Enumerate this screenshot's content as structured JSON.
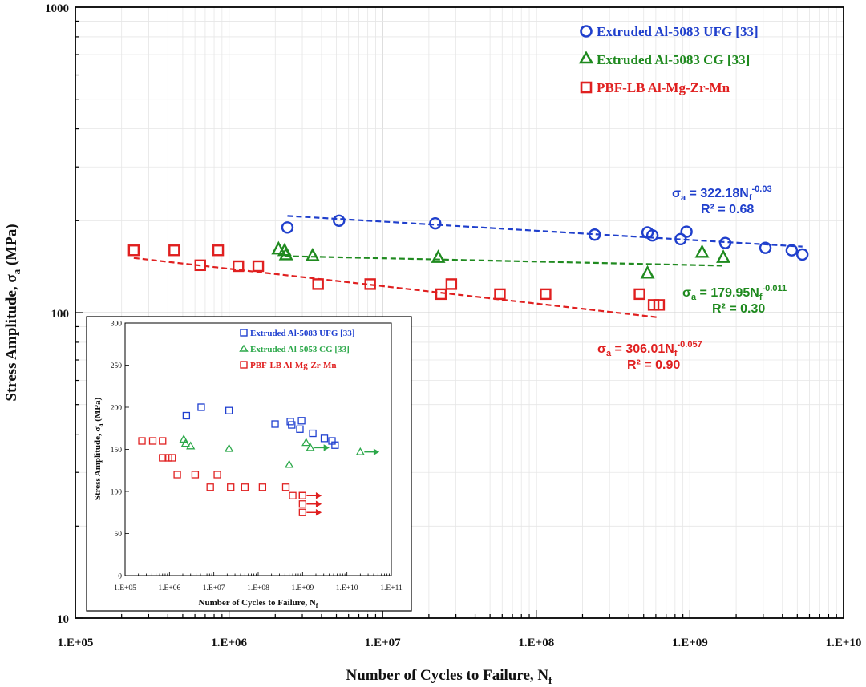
{
  "chart_data": [
    {
      "type": "scatter",
      "xlabel": "Number of Cycles to Failure, N",
      "xlabel_sub": "f",
      "ylabel": "Stress Amplitude, σ",
      "ylabel_sub": "a",
      "ylabel_unit": " (MPa)",
      "x_scale": "log",
      "y_scale": "log",
      "xlim": [
        100000,
        10000000000
      ],
      "ylim": [
        10,
        1000
      ],
      "grid": true,
      "legend_position": "top-right",
      "x_tick_labels": [
        "1.E+05",
        "1.E+06",
        "1.E+07",
        "1.E+08",
        "1.E+09",
        "1.E+10"
      ],
      "y_tick_labels": [
        "10",
        "100",
        "1000"
      ],
      "series": [
        {
          "name": "Extruded Al-5083 UFG [33]",
          "marker": "circle",
          "color": "#1f3fcc",
          "x": [
            2400000,
            5200000,
            22000000,
            240000000,
            530000000,
            570000000,
            870000000,
            950000000,
            1700000000,
            3100000000,
            4600000000,
            5400000000
          ],
          "y": [
            190,
            200,
            196,
            180,
            183,
            179,
            174,
            184,
            169,
            163,
            160,
            155
          ],
          "fit": {
            "coef": 322.18,
            "exp": -0.03,
            "x_range": [
              2400000,
              5400000000
            ],
            "eq_prefix": "σ",
            "eq_prefix_sub": "a",
            "eq_mid": " = 322.18N",
            "eq_mid_sub": "f",
            "eq_exp": "-0.03",
            "r2": "R² = 0.68"
          }
        },
        {
          "name": "Extruded Al-5083 CG [33]",
          "marker": "triangle",
          "color": "#1f8a1f",
          "x": [
            2100000,
            2300000,
            2350000,
            3500000,
            23000000,
            530000000,
            1200000000,
            1650000000
          ],
          "y": [
            162,
            160,
            155,
            154,
            152,
            135,
            158,
            152
          ],
          "fit": {
            "coef": 179.95,
            "exp": -0.011,
            "x_range": [
              2300000,
              1650000000
            ],
            "eq_prefix": "σ",
            "eq_prefix_sub": "a",
            "eq_mid": " = 179.95N",
            "eq_mid_sub": "f",
            "eq_exp": "-0.011",
            "r2": "R² = 0.30"
          }
        },
        {
          "name": "PBF-LB Al-Mg-Zr-Mn",
          "marker": "square",
          "color": "#e02020",
          "x": [
            240000,
            440000,
            650000,
            850000,
            1150000,
            1550000,
            3800000,
            8300000,
            24000000,
            28000000,
            58000000,
            115000000,
            470000000,
            580000000,
            630000000
          ],
          "y": [
            160,
            160,
            143,
            160,
            142,
            142,
            124,
            124,
            115,
            124,
            115,
            115,
            115,
            106,
            106
          ],
          "fit": {
            "coef": 306.01,
            "exp": -0.057,
            "x_range": [
              240000,
              630000000
            ],
            "eq_prefix": "σ",
            "eq_prefix_sub": "a",
            "eq_mid": " = 306.01N",
            "eq_mid_sub": "f",
            "eq_exp": "-0.057",
            "r2": "R² = 0.90"
          }
        }
      ]
    },
    {
      "type": "scatter",
      "xlabel": "Number of Cycles to Failure, N",
      "xlabel_sub": "f",
      "ylabel": "Stress Amplitude, σ",
      "ylabel_sub": "a",
      "ylabel_unit": " (MPa)",
      "x_scale": "log",
      "y_scale": "linear",
      "xlim": [
        100000,
        100000000000
      ],
      "ylim": [
        0,
        300
      ],
      "grid": false,
      "legend_position": "top-left",
      "x_tick_labels": [
        "1.E+05",
        "1.E+06",
        "1.E+07",
        "1.E+08",
        "1.E+09",
        "1.E+10",
        "1.E+11"
      ],
      "y_tick_labels": [
        "0",
        "50",
        "100",
        "150",
        "200",
        "250",
        "300"
      ],
      "series": [
        {
          "name": "Extruded Al-5083 UFG [33]",
          "marker": "square",
          "color": "#2040d0",
          "x": [
            2400000,
            5200000,
            22000000,
            240000000,
            530000000,
            570000000,
            870000000,
            950000000,
            1700000000,
            3100000000,
            4600000000,
            5400000000
          ],
          "y": [
            190,
            200,
            196,
            180,
            183,
            179,
            174,
            184,
            169,
            163,
            160,
            155
          ],
          "runouts": []
        },
        {
          "name": "Extruded Al-5053 CG [33]",
          "marker": "triangle",
          "color": "#2ca84a",
          "x": [
            2100000,
            2300000,
            3000000,
            22000000,
            500000000,
            1200000000,
            1500000000,
            20000000000
          ],
          "y": [
            162,
            157,
            154,
            151,
            132,
            158,
            152,
            147
          ],
          "runouts": [
            1500000000,
            20000000000
          ]
        },
        {
          "name": "PBF-LB Al-Mg-Zr-Mn",
          "marker": "square",
          "color": "#e02020",
          "x": [
            240000,
            420000,
            700000,
            700000,
            950000,
            1150000,
            1500000,
            3800000,
            8300000,
            12000000,
            24000000,
            50000000,
            125000000,
            420000000,
            600000000,
            1000000000,
            1000000000,
            1000000000,
            1000000000
          ],
          "y": [
            160,
            160,
            160,
            140,
            140,
            140,
            120,
            120,
            105,
            120,
            105,
            105,
            105,
            105,
            95,
            95,
            85,
            75,
            95
          ],
          "runouts": [
            1000000000,
            1000000000,
            1000000000
          ]
        }
      ]
    }
  ]
}
